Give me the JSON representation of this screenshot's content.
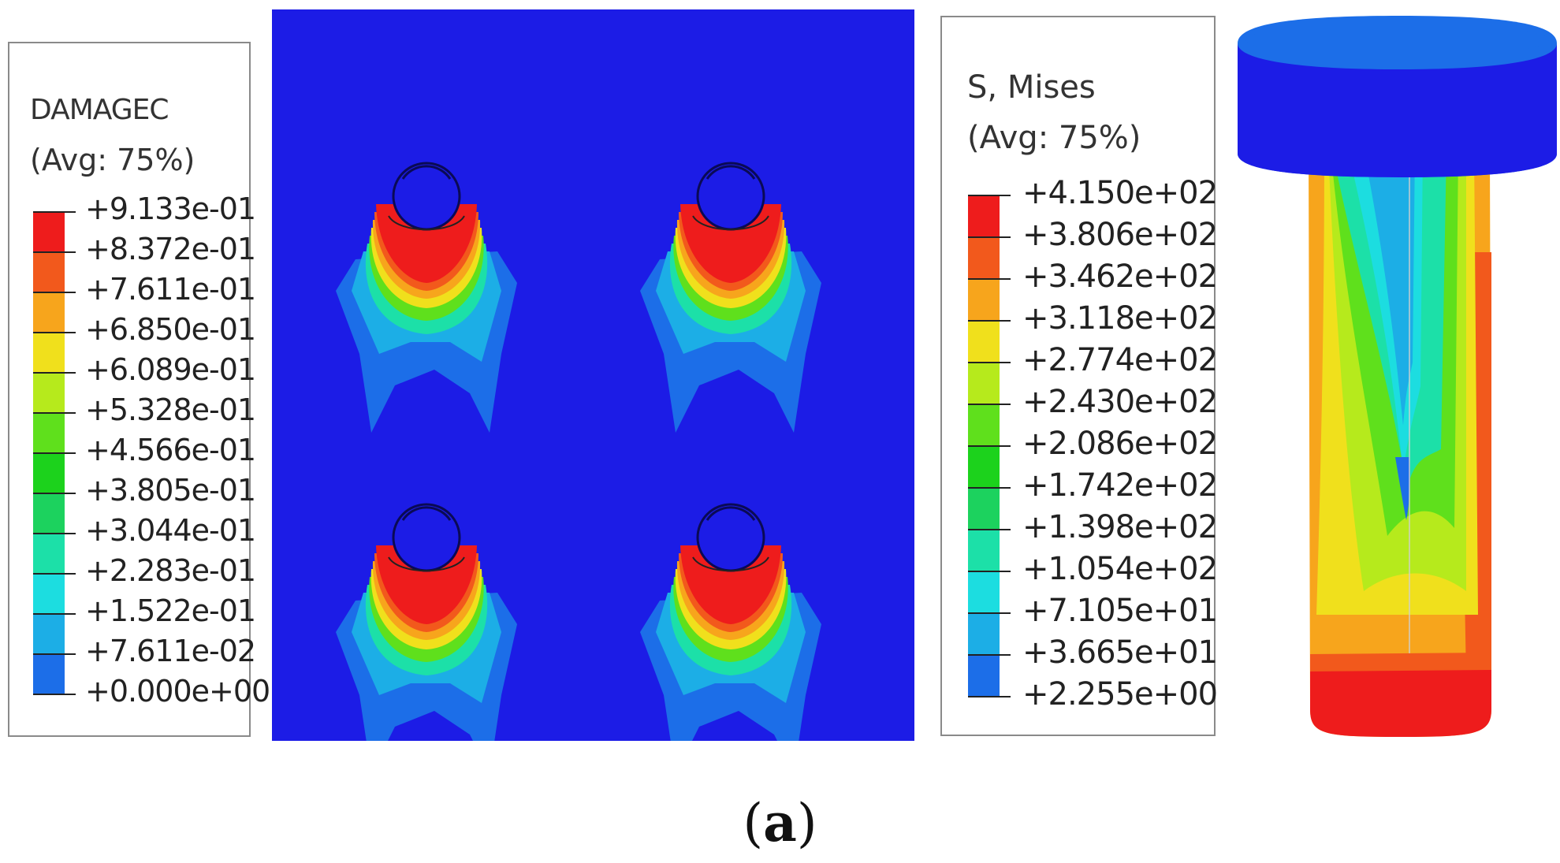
{
  "damage_legend": {
    "variable": "DAMAGEC",
    "averaging": "(Avg: 75%)",
    "ticks": [
      "+9.133e-01",
      "+8.372e-01",
      "+7.611e-01",
      "+6.850e-01",
      "+6.089e-01",
      "+5.328e-01",
      "+4.566e-01",
      "+3.805e-01",
      "+3.044e-01",
      "+2.283e-01",
      "+1.522e-01",
      "+7.611e-02",
      "+0.000e+00"
    ]
  },
  "stress_legend": {
    "variable": "S, Mises",
    "averaging": "(Avg: 75%)",
    "ticks": [
      "+4.150e+02",
      "+3.806e+02",
      "+3.462e+02",
      "+3.118e+02",
      "+2.774e+02",
      "+2.430e+02",
      "+2.086e+02",
      "+1.742e+02",
      "+1.398e+02",
      "+1.054e+02",
      "+7.105e+01",
      "+3.665e+01",
      "+2.255e+00"
    ]
  },
  "colormap": [
    "#ee1c1c",
    "#f2591c",
    "#f7a51c",
    "#f0e01c",
    "#b6ea1c",
    "#5fe01c",
    "#1cd21c",
    "#1cd25e",
    "#1ce0a8",
    "#1cdde0",
    "#1caee6",
    "#1c6ee8",
    "#1c1ce6"
  ],
  "caption": {
    "open": "(",
    "letter": "a",
    "close": ")"
  }
}
